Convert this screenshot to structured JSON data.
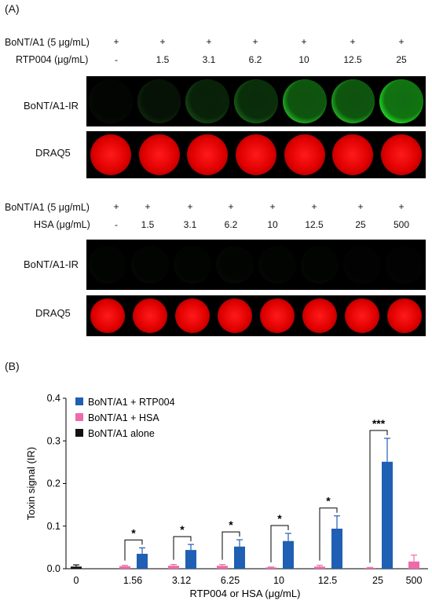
{
  "panel_a": {
    "label": "(A)",
    "set1": {
      "row1_label": "BoNT/A1 (5 μg/mL)",
      "row1_values": [
        "+",
        "+",
        "+",
        "+",
        "+",
        "+",
        "+"
      ],
      "row2_label": "RTP004 (μg/mL)",
      "row2_values": [
        "-",
        "1.5",
        "3.1",
        "6.2",
        "10",
        "12.5",
        "25"
      ],
      "strip1_label": "BoNT/A1-IR",
      "strip2_label": "DRAQ5",
      "ir_intensity": [
        0.15,
        0.35,
        0.5,
        0.6,
        0.85,
        0.85,
        1.0
      ]
    },
    "set2": {
      "row1_label": "BoNT/A1 (5 μg/mL)",
      "row1_values": [
        "+",
        "+",
        "+",
        "+",
        "+",
        "+",
        "+",
        "+"
      ],
      "row2_label": "HSA (μg/mL)",
      "row2_values": [
        "-",
        "1.5",
        "3.1",
        "6.2",
        "10",
        "12.5",
        "25",
        "500"
      ],
      "strip1_label": "BoNT/A1-IR",
      "strip2_label": "DRAQ5",
      "ir_intensity": [
        0.12,
        0.12,
        0.12,
        0.14,
        0.12,
        0.12,
        0.08,
        0.08
      ]
    }
  },
  "panel_b_label": "(B)",
  "chart_data": {
    "type": "bar",
    "xlabel": "RTP004 or HSA (μg/mL)",
    "ylabel": "Toxin signal (IR)",
    "ylim": [
      0,
      0.4
    ],
    "yticks": [
      "0.0",
      "0.1",
      "0.2",
      "0.3",
      "0.4"
    ],
    "categories": [
      "0",
      "1.56",
      "3.12",
      "6.25",
      "10",
      "12.5",
      "25",
      "500"
    ],
    "legend_position": "top-left",
    "series": [
      {
        "name": "BoNT/A1 + RTP004",
        "color": "#1f5fb4",
        "values": [
          null,
          0.035,
          0.044,
          0.052,
          0.065,
          0.094,
          0.251,
          null
        ],
        "errors": [
          null,
          0.014,
          0.013,
          0.016,
          0.018,
          0.03,
          0.055,
          null
        ]
      },
      {
        "name": "BoNT/A1 + HSA",
        "color": "#f06aaa",
        "values": [
          null,
          0.006,
          0.007,
          0.007,
          0.003,
          0.005,
          0.002,
          0.017
        ],
        "errors": [
          null,
          0.002,
          0.003,
          0.003,
          0.001,
          0.003,
          0.001,
          0.015
        ]
      },
      {
        "name": "BoNT/A1 alone",
        "color": "#111111",
        "values": [
          0.005,
          null,
          null,
          null,
          null,
          null,
          null,
          null
        ],
        "errors": [
          0.004,
          null,
          null,
          null,
          null,
          null,
          null,
          null
        ]
      }
    ],
    "significance": [
      {
        "category": "1.56",
        "label": "*"
      },
      {
        "category": "3.12",
        "label": "*"
      },
      {
        "category": "6.25",
        "label": "*"
      },
      {
        "category": "10",
        "label": "*"
      },
      {
        "category": "12.5",
        "label": "*"
      },
      {
        "category": "25",
        "label": "***"
      }
    ]
  }
}
